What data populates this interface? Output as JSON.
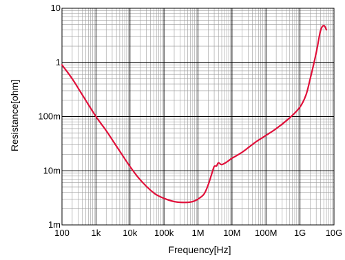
{
  "chart_data": {
    "type": "line",
    "title": "",
    "xlabel": "Frequency[Hz]",
    "ylabel": "Resistance[ohm]",
    "x_scale": "log",
    "y_scale": "log",
    "xlim": [
      100,
      10000000000
    ],
    "ylim": [
      0.001,
      10
    ],
    "grid": true,
    "x_ticks": [
      100,
      1000,
      10000,
      100000,
      1000000,
      10000000,
      100000000,
      1000000000,
      10000000000
    ],
    "x_tick_labels": [
      "100",
      "1k",
      "10k",
      "100k",
      "1M",
      "10M",
      "100M",
      "1G",
      "10G"
    ],
    "y_ticks": [
      0.001,
      0.01,
      0.1,
      1,
      10
    ],
    "y_tick_labels": [
      "1m",
      "10m",
      "100m",
      "1",
      "10"
    ],
    "line_color": "#e0103a",
    "series": [
      {
        "x": [
          100,
          200,
          400,
          1000,
          2000,
          5000,
          10000,
          20000,
          50000,
          100000,
          200000,
          400000,
          700000,
          1000000,
          1500000,
          2000000,
          2500000,
          3000000,
          3500000,
          4000000,
          5000000,
          7000000,
          10000000,
          20000000,
          50000000,
          100000000,
          200000000,
          500000000,
          1000000000,
          1500000000,
          2000000000,
          3000000000,
          4000000000,
          5000000000,
          6000000000
        ],
        "y": [
          0.9,
          0.5,
          0.25,
          0.1,
          0.055,
          0.023,
          0.012,
          0.0068,
          0.0039,
          0.0031,
          0.0027,
          0.0026,
          0.0027,
          0.003,
          0.0037,
          0.0055,
          0.0085,
          0.012,
          0.0122,
          0.014,
          0.013,
          0.0145,
          0.017,
          0.022,
          0.034,
          0.045,
          0.06,
          0.095,
          0.15,
          0.25,
          0.5,
          1.5,
          3.8,
          4.8,
          4.0
        ]
      }
    ]
  }
}
